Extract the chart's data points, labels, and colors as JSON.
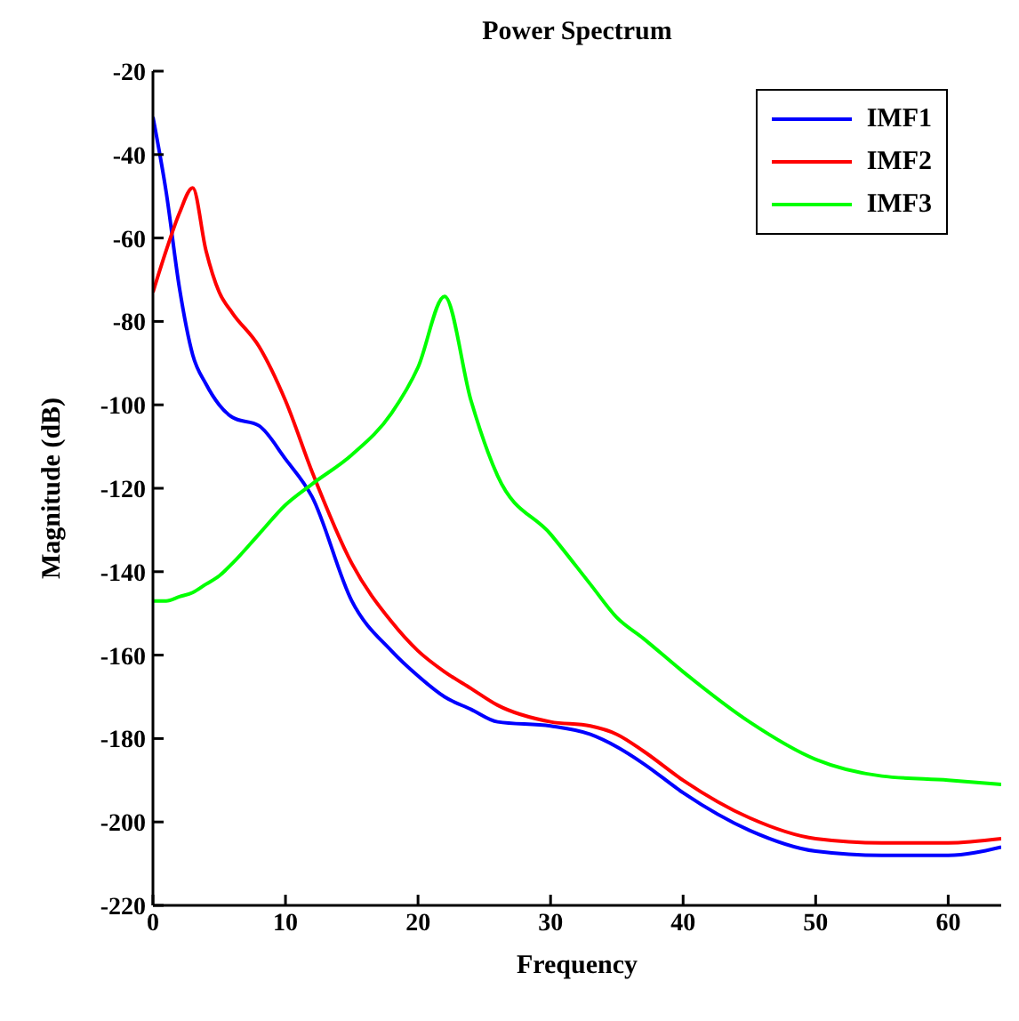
{
  "chart_data": {
    "type": "line",
    "title": "Power Spectrum",
    "xlabel": "Frequency",
    "ylabel": "Magnitude (dB)",
    "x": [
      0,
      1,
      2,
      3,
      4,
      5,
      6,
      8,
      10,
      12,
      15,
      18,
      20,
      22,
      24,
      26,
      30,
      33,
      35,
      37,
      40,
      45,
      50,
      55,
      60,
      64
    ],
    "series": [
      {
        "name": "IMF1",
        "color": "#0000ff",
        "values": [
          -31,
          -49,
          -72,
          -88,
          -95,
          -100,
          -103,
          -105,
          -113,
          -122,
          -147,
          -159,
          -165,
          -170,
          -173,
          -176,
          -177,
          -179,
          -182,
          -186,
          -193,
          -202,
          -207,
          -208,
          -208,
          -206
        ]
      },
      {
        "name": "IMF2",
        "color": "#ff0000",
        "values": [
          -73,
          -63,
          -54,
          -48,
          -63,
          -73,
          -78,
          -86,
          -99,
          -116,
          -138,
          -152,
          -159,
          -164,
          -168,
          -172,
          -176,
          -177,
          -179,
          -183,
          -190,
          -199,
          -204,
          -205,
          -205,
          -204
        ]
      },
      {
        "name": "IMF3",
        "color": "#00ff00",
        "values": [
          -147,
          -147,
          -146,
          -145,
          -143,
          -141,
          -138,
          -131,
          -124,
          -119,
          -112,
          -102,
          -91,
          -74,
          -99,
          -117,
          -131,
          -143,
          -151,
          -156,
          -164,
          -176,
          -185,
          -189,
          -190,
          -191
        ]
      }
    ],
    "xlim": [
      0,
      64
    ],
    "xticks": [
      0,
      10,
      20,
      30,
      40,
      50,
      60
    ],
    "ylim": [
      -220,
      -20
    ],
    "yticks": [
      -220,
      -200,
      -180,
      -160,
      -140,
      -120,
      -100,
      -80,
      -60,
      -40,
      -20
    ],
    "grid": false,
    "legend": "top right",
    "marker": "none",
    "line_style": "solid"
  }
}
